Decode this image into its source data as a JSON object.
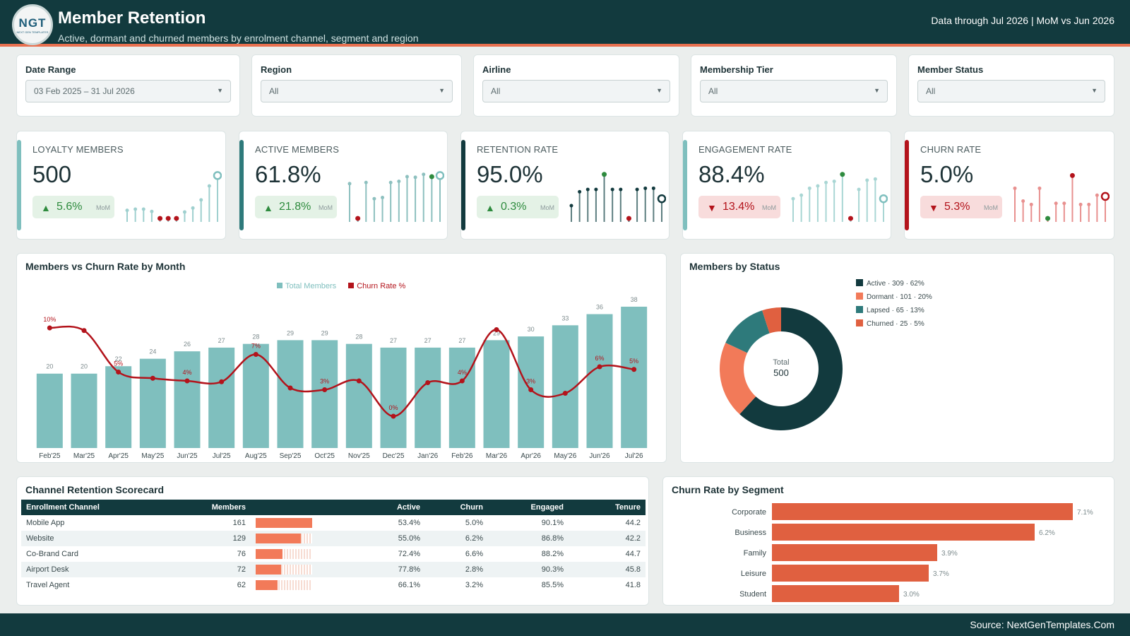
{
  "header": {
    "logo_text": "NGT",
    "logo_subtext": "NEXT GEN TEMPLATES",
    "title": "Member Retention",
    "subtitle": "Active, dormant and churned members by enrolment channel, segment and region",
    "data_through": "Data through Jul 2026 | MoM vs Jun 2026"
  },
  "filters": [
    {
      "label": "Date Range",
      "value": "03 Feb 2025 – 31 Jul 2026"
    },
    {
      "label": "Region",
      "value": "All"
    },
    {
      "label": "Airline",
      "value": "All"
    },
    {
      "label": "Membership Tier",
      "value": "All"
    },
    {
      "label": "Member Status",
      "value": "All"
    }
  ],
  "kpis": [
    {
      "label": "LOYALTY MEMBERS",
      "value": "500",
      "delta": "5.6%",
      "direction": "up",
      "mom": "MoM",
      "accent": "#7fbfbe",
      "spark": [
        0.2,
        0.22,
        0.22,
        0.18,
        0.06,
        0.06,
        0.06,
        0.17,
        0.24,
        0.38,
        0.62,
        0.8
      ],
      "spark_color": "#9fd0cf",
      "low_index": [
        4,
        5,
        6
      ],
      "high_index": 11
    },
    {
      "label": "ACTIVE MEMBERS",
      "value": "61.8%",
      "delta": "21.8%",
      "direction": "up",
      "mom": "MoM",
      "accent": "#2e7a7b",
      "spark": [
        0.66,
        0.06,
        0.68,
        0.4,
        0.42,
        0.68,
        0.7,
        0.78,
        0.77,
        0.82,
        0.78,
        0.8
      ],
      "spark_color": "#8dc0bf",
      "low_index": [
        1
      ],
      "high_index": 10
    },
    {
      "label": "RETENTION RATE",
      "value": "95.0%",
      "delta": "0.3%",
      "direction": "up",
      "mom": "MoM",
      "accent": "#123a3e",
      "spark": [
        0.28,
        0.52,
        0.56,
        0.56,
        0.82,
        0.56,
        0.56,
        0.06,
        0.56,
        0.58,
        0.58,
        0.4
      ],
      "spark_color": "#5d7e80",
      "low_index": [
        7
      ],
      "high_index": 4
    },
    {
      "label": "ENGAGEMENT RATE",
      "value": "88.4%",
      "delta": "13.4%",
      "direction": "down",
      "mom": "MoM",
      "accent": "#7fbfbe",
      "spark": [
        0.4,
        0.46,
        0.58,
        0.62,
        0.68,
        0.7,
        0.82,
        0.06,
        0.56,
        0.72,
        0.74,
        0.4
      ],
      "spark_color": "#a9d6d4",
      "low_index": [
        7
      ],
      "high_index": 6
    },
    {
      "label": "CHURN RATE",
      "value": "5.0%",
      "delta": "5.3%",
      "direction": "down",
      "mom": "MoM",
      "accent": "#b3131b",
      "spark": [
        0.58,
        0.36,
        0.3,
        0.58,
        0.06,
        0.32,
        0.32,
        0.8,
        0.3,
        0.3,
        0.46,
        0.44
      ],
      "spark_color": "#e8908f",
      "low_index": [
        4
      ],
      "high_index": 7
    }
  ],
  "combo_chart": {
    "title": "Members vs Churn Rate by Month",
    "legend": {
      "bars": "Total Members",
      "line": "Churn Rate %"
    }
  },
  "chart_data": [
    {
      "type": "bar",
      "title": "Members vs Churn Rate by Month",
      "categories": [
        "Feb'25",
        "Mar'25",
        "Apr'25",
        "May'25",
        "Jun'25",
        "Jul'25",
        "Aug'25",
        "Sep'25",
        "Oct'25",
        "Nov'25",
        "Dec'25",
        "Jan'26",
        "Feb'26",
        "Mar'26",
        "Apr'26",
        "May'26",
        "Jun'26",
        "Jul'26"
      ],
      "series": [
        {
          "name": "Total Members",
          "kind": "bar",
          "color": "#7fbfbe",
          "values": [
            20,
            20,
            22,
            24,
            26,
            27,
            28,
            29,
            29,
            28,
            27,
            27,
            27,
            29,
            30,
            33,
            36,
            38
          ]
        },
        {
          "name": "Churn Rate %",
          "kind": "line",
          "color": "#b3131b",
          "values": [
            10,
            9.7,
            5,
            4.3,
            4,
            3.9,
            7,
            3.2,
            3,
            4,
            0,
            3.8,
            4,
            9.8,
            3,
            2.6,
            5.6,
            5.3
          ],
          "labels": [
            "10%",
            "",
            "5%",
            "",
            "4%",
            "",
            "7%",
            "",
            "3%",
            "",
            "0%",
            "",
            "4%",
            "",
            "3%",
            "",
            "6%",
            "5%"
          ]
        }
      ],
      "ylim_bars": [
        0,
        38
      ],
      "ylim_line": [
        0,
        12
      ],
      "legend": "top-center"
    },
    {
      "type": "pie",
      "donut": true,
      "title": "Members by Status",
      "center_label": "Total",
      "center_value": "500",
      "slices": [
        {
          "name": "Active",
          "value": 309,
          "pct": 62,
          "color": "#123a3e",
          "legend_text": "Active · 309 · 62%"
        },
        {
          "name": "Dormant",
          "value": 101,
          "pct": 20,
          "color": "#f27a59",
          "legend_text": "Dormant · 101 · 20%"
        },
        {
          "name": "Lapsed",
          "value": 65,
          "pct": 13,
          "color": "#2e7a7b",
          "legend_text": "Lapsed · 65 · 13%"
        },
        {
          "name": "Churned",
          "value": 25,
          "pct": 5,
          "color": "#e06040",
          "legend_text": "Churned · 25 · 5%"
        }
      ],
      "legend": "right"
    },
    {
      "type": "bar",
      "orientation": "horizontal",
      "title": "Churn Rate by Segment",
      "categories": [
        "Corporate",
        "Business",
        "Family",
        "Leisure",
        "Student"
      ],
      "values": [
        7.1,
        6.2,
        3.9,
        3.7,
        3.0
      ],
      "labels": [
        "7.1%",
        "6.2%",
        "3.9%",
        "3.7%",
        "3.0%"
      ],
      "color": "#e06040",
      "xlim": [
        0,
        7.1
      ]
    }
  ],
  "donut": {
    "title": "Members by Status"
  },
  "scorecard": {
    "title": "Channel Retention Scorecard",
    "columns": [
      "Enrollment Channel",
      "Members",
      "",
      "Active",
      "Churn",
      "Engaged",
      "Tenure"
    ],
    "max_members": 161,
    "rows": [
      {
        "channel": "Mobile App",
        "members": "161",
        "members_num": 161,
        "active": "53.4%",
        "churn": "5.0%",
        "engaged": "90.1%",
        "tenure": "44.2"
      },
      {
        "channel": "Website",
        "members": "129",
        "members_num": 129,
        "active": "55.0%",
        "churn": "6.2%",
        "engaged": "86.8%",
        "tenure": "42.2"
      },
      {
        "channel": "Co-Brand Card",
        "members": "76",
        "members_num": 76,
        "active": "72.4%",
        "churn": "6.6%",
        "engaged": "88.2%",
        "tenure": "44.7"
      },
      {
        "channel": "Airport Desk",
        "members": "72",
        "members_num": 72,
        "active": "77.8%",
        "churn": "2.8%",
        "engaged": "90.3%",
        "tenure": "45.8"
      },
      {
        "channel": "Travel Agent",
        "members": "62",
        "members_num": 62,
        "active": "66.1%",
        "churn": "3.2%",
        "engaged": "85.5%",
        "tenure": "41.8"
      }
    ]
  },
  "segment_chart": {
    "title": "Churn Rate by Segment"
  },
  "footer": {
    "source": "Source: NextGenTemplates.Com"
  },
  "colors": {
    "dark": "#123a3e",
    "teal": "#7fbfbe",
    "red": "#b3131b",
    "orange": "#f27a59",
    "up_green": "#2e8b3e"
  }
}
